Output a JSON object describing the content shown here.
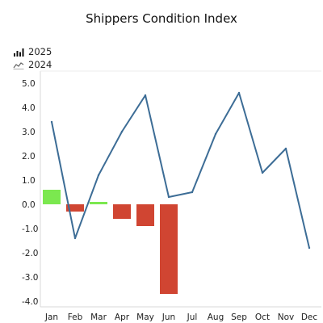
{
  "chart_data": {
    "type": "bar",
    "title": "Shippers Condition Index",
    "categories": [
      "Jan",
      "Feb",
      "Mar",
      "Apr",
      "May",
      "Jun",
      "Jul",
      "Aug",
      "Sep",
      "Oct",
      "Nov",
      "Dec"
    ],
    "series": [
      {
        "name": "2025",
        "type": "bar",
        "values": [
          0.6,
          -0.3,
          0.1,
          -0.6,
          -0.9,
          -3.7,
          null,
          null,
          null,
          null,
          null,
          null
        ],
        "positive_color": "#7be84f",
        "negative_color": "#d04532"
      },
      {
        "name": "2024",
        "type": "line",
        "values": [
          3.4,
          -1.4,
          1.2,
          3.0,
          4.5,
          0.3,
          0.5,
          2.9,
          4.6,
          1.3,
          2.3,
          -1.8
        ],
        "color": "#3d6d96"
      }
    ],
    "y_ticks": [
      "5.0",
      "4.0",
      "3.0",
      "2.0",
      "1.0",
      "0.0",
      "-1.0",
      "-2.0",
      "-3.0",
      "-4.0"
    ],
    "ylim": [
      -4.0,
      5.0
    ],
    "grid": false,
    "legend_position": "top-left"
  }
}
